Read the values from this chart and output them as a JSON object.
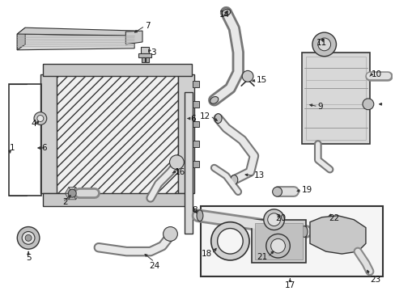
{
  "background_color": "#ffffff",
  "fig_width": 4.89,
  "fig_height": 3.6,
  "dpi": 100,
  "line_color": "#333333",
  "fill_light": "#e8e8e8",
  "fill_mid": "#cccccc",
  "fill_dark": "#999999",
  "hatch_color": "#666666"
}
